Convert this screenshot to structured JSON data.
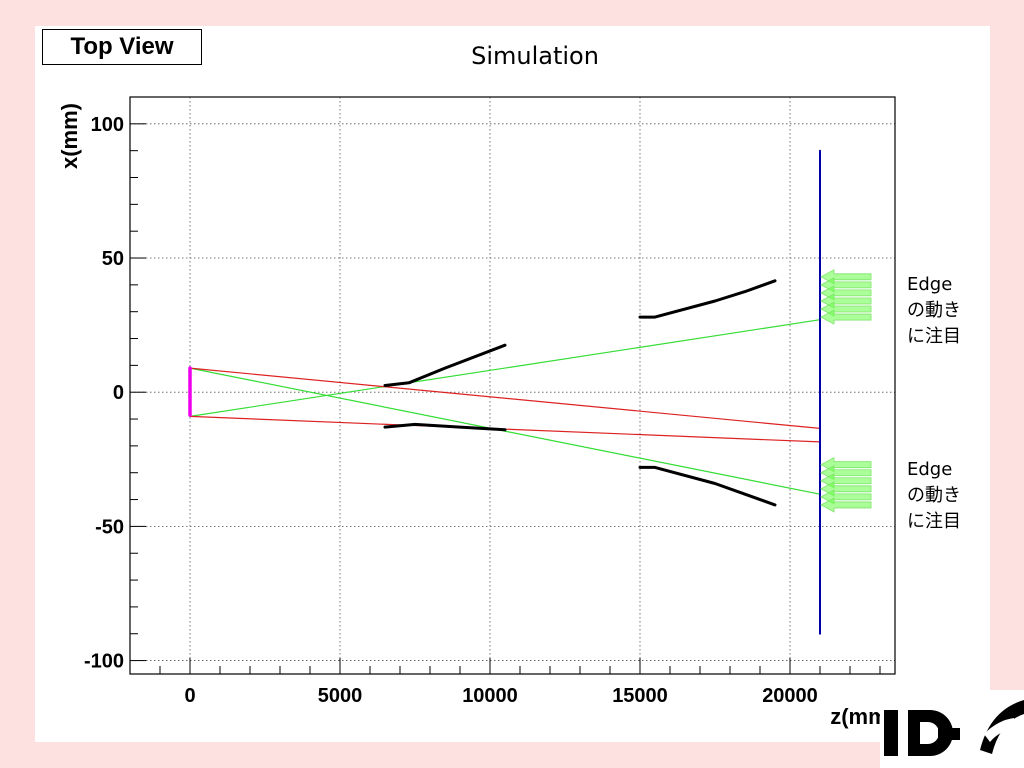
{
  "header": {
    "view_label": "Top View",
    "title": "Simulation"
  },
  "annotations": [
    {
      "line1": "Edge",
      "line2": "の動き",
      "line3": "に注目"
    },
    {
      "line1": "Edge",
      "line2": "の動き",
      "line3": "に注目"
    }
  ],
  "colors": {
    "background": "#fde1e1",
    "green_ray": "#33dd33",
    "red_ray": "#dd2222",
    "detector": "#0000aa",
    "source": "#ee00ee",
    "edges": "#000000",
    "arrow_fill": "#66ff44"
  },
  "chart_data": {
    "type": "line",
    "title": "Simulation",
    "xlabel": "z(mm)",
    "ylabel": "x(mm)",
    "xlim": [
      -2000,
      23500
    ],
    "ylim": [
      -105,
      110
    ],
    "grid": true,
    "x_ticks": [
      {
        "value": 0,
        "label": "0"
      },
      {
        "value": 5000,
        "label": "5000"
      },
      {
        "value": 10000,
        "label": "10000"
      },
      {
        "value": 15000,
        "label": "15000"
      },
      {
        "value": 20000,
        "label": "20000"
      }
    ],
    "y_ticks": [
      {
        "value": 100,
        "label": "100"
      },
      {
        "value": 50,
        "label": "50"
      },
      {
        "value": 0,
        "label": "0"
      },
      {
        "value": -50,
        "label": "-50"
      },
      {
        "value": -100,
        "label": "-100"
      }
    ],
    "series": [
      {
        "id": "green-ray-upper",
        "color": "#33dd33",
        "width": 1.2,
        "points": [
          [
            0,
            -9
          ],
          [
            21000,
            27
          ]
        ]
      },
      {
        "id": "green-ray-lower",
        "color": "#33dd33",
        "width": 1.2,
        "points": [
          [
            0,
            9
          ],
          [
            21000,
            -38
          ]
        ]
      },
      {
        "id": "red-ray-upper",
        "color": "#dd2222",
        "width": 1.2,
        "points": [
          [
            0,
            9
          ],
          [
            21000,
            -13.5
          ]
        ]
      },
      {
        "id": "red-ray-lower",
        "color": "#dd2222",
        "width": 1.2,
        "points": [
          [
            0,
            -9
          ],
          [
            21000,
            -18.5
          ]
        ]
      },
      {
        "id": "edge-upper-mid",
        "color": "#000000",
        "width": 3,
        "points": [
          [
            6500,
            2.5
          ],
          [
            7300,
            3.5
          ],
          [
            8500,
            9
          ],
          [
            10500,
            17.5
          ]
        ]
      },
      {
        "id": "edge-lower-mid",
        "color": "#000000",
        "width": 3,
        "points": [
          [
            6500,
            -13
          ],
          [
            7500,
            -12
          ],
          [
            9000,
            -13
          ],
          [
            10500,
            -14
          ]
        ]
      },
      {
        "id": "edge-upper-far",
        "color": "#000000",
        "width": 3,
        "points": [
          [
            15000,
            28
          ],
          [
            15500,
            28
          ],
          [
            17500,
            34
          ],
          [
            18500,
            37.5
          ],
          [
            19500,
            41.5
          ]
        ]
      },
      {
        "id": "edge-lower-far",
        "color": "#000000",
        "width": 3,
        "points": [
          [
            15000,
            -28
          ],
          [
            15500,
            -28
          ],
          [
            17500,
            -34
          ],
          [
            18500,
            -38
          ],
          [
            19500,
            -42
          ]
        ]
      },
      {
        "id": "source",
        "color": "#ee00ee",
        "width": 3.5,
        "points": [
          [
            0,
            -8.5
          ],
          [
            0,
            9
          ]
        ]
      },
      {
        "id": "detector",
        "color": "#0000aa",
        "width": 2,
        "points": [
          [
            21000,
            -90
          ],
          [
            21000,
            90
          ]
        ]
      }
    ],
    "arrows": [
      {
        "id": "arrow-upper",
        "z": 21000,
        "x_values": [
          43,
          40,
          37,
          34,
          31,
          28
        ]
      },
      {
        "id": "arrow-lower",
        "z": 21000,
        "x_values": [
          -27,
          -30,
          -33,
          -36,
          -39,
          -42
        ]
      }
    ]
  }
}
